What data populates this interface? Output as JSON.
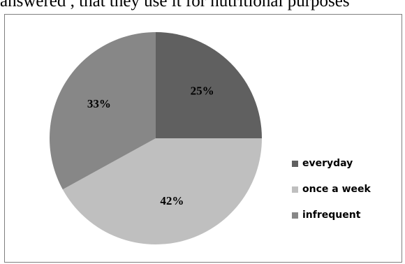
{
  "header_text": "answered , that they use it for nutritional purposes",
  "chart_data": {
    "type": "pie",
    "title": "",
    "categories": [
      "everyday",
      "once a week",
      "infrequent"
    ],
    "values": [
      25,
      42,
      33
    ],
    "labels": [
      "25%",
      "42%",
      "33%"
    ],
    "colors": [
      "#606060",
      "#bfbfbf",
      "#878787"
    ],
    "start_angle_deg": 0,
    "direction": "clockwise",
    "legend_position": "right"
  }
}
